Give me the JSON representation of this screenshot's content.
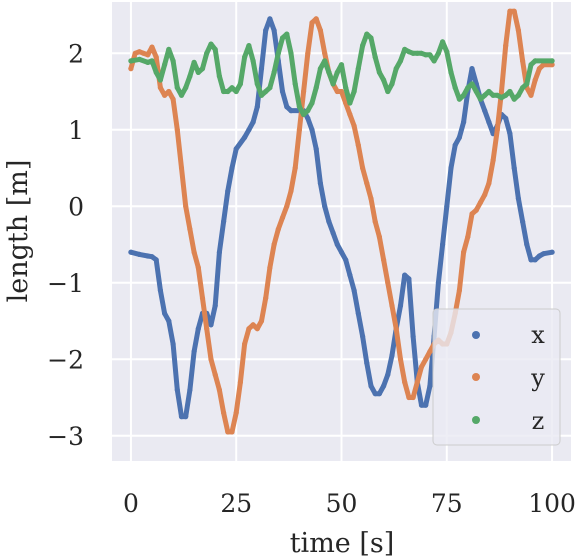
{
  "chart_data": {
    "type": "scatter",
    "title": "",
    "xlabel": "time [s]",
    "ylabel": "length [m]",
    "xlim": [
      -4.5,
      104.5
    ],
    "ylim": [
      -3.33,
      2.67
    ],
    "xticks": [
      0,
      25,
      50,
      75,
      100
    ],
    "xtick_labels": [
      "0",
      "25",
      "50",
      "75",
      "100"
    ],
    "yticks": [
      -3,
      -2,
      -1,
      0,
      1,
      2
    ],
    "ytick_labels": [
      "−3",
      "−2",
      "−1",
      "0",
      "1",
      "2"
    ],
    "grid": true,
    "legend_position": "lower-right",
    "series": [
      {
        "name": "x",
        "color": "#4c72b0",
        "points": [
          [
            0,
            -0.6
          ],
          [
            2,
            -0.63
          ],
          [
            4,
            -0.65
          ],
          [
            5,
            -0.66
          ],
          [
            6,
            -0.7
          ],
          [
            7,
            -1.1
          ],
          [
            8,
            -1.4
          ],
          [
            9,
            -1.5
          ],
          [
            10,
            -1.8
          ],
          [
            11,
            -2.4
          ],
          [
            12,
            -2.75
          ],
          [
            13,
            -2.75
          ],
          [
            14,
            -2.4
          ],
          [
            15,
            -1.9
          ],
          [
            16,
            -1.6
          ],
          [
            17,
            -1.4
          ],
          [
            18,
            -1.4
          ],
          [
            19,
            -1.55
          ],
          [
            20,
            -1.3
          ],
          [
            21,
            -0.6
          ],
          [
            22,
            -0.2
          ],
          [
            23,
            0.2
          ],
          [
            24,
            0.5
          ],
          [
            25,
            0.75
          ],
          [
            27,
            0.9
          ],
          [
            28,
            1.0
          ],
          [
            29,
            1.1
          ],
          [
            30,
            1.3
          ],
          [
            31,
            1.8
          ],
          [
            32,
            2.3
          ],
          [
            33,
            2.45
          ],
          [
            34,
            2.3
          ],
          [
            35,
            1.9
          ],
          [
            36,
            1.5
          ],
          [
            37,
            1.3
          ],
          [
            38,
            1.25
          ],
          [
            40,
            1.25
          ],
          [
            41,
            1.25
          ],
          [
            42,
            1.15
          ],
          [
            43,
            1.0
          ],
          [
            44,
            0.75
          ],
          [
            45,
            0.3
          ],
          [
            46,
            0.0
          ],
          [
            47,
            -0.2
          ],
          [
            48,
            -0.35
          ],
          [
            49,
            -0.5
          ],
          [
            50,
            -0.6
          ],
          [
            51,
            -0.7
          ],
          [
            52,
            -0.9
          ],
          [
            53,
            -1.1
          ],
          [
            54,
            -1.4
          ],
          [
            55,
            -1.7
          ],
          [
            56,
            -2.05
          ],
          [
            57,
            -2.35
          ],
          [
            58,
            -2.45
          ],
          [
            59,
            -2.45
          ],
          [
            60,
            -2.35
          ],
          [
            61,
            -2.2
          ],
          [
            62,
            -1.95
          ],
          [
            63,
            -1.6
          ],
          [
            64,
            -1.3
          ],
          [
            65,
            -0.9
          ],
          [
            66,
            -0.95
          ],
          [
            67,
            -1.7
          ],
          [
            68,
            -2.3
          ],
          [
            69,
            -2.6
          ],
          [
            70,
            -2.6
          ],
          [
            71,
            -2.35
          ],
          [
            72,
            -1.7
          ],
          [
            73,
            -1.0
          ],
          [
            74,
            -0.5
          ],
          [
            75,
            0.0
          ],
          [
            76,
            0.5
          ],
          [
            77,
            0.8
          ],
          [
            78,
            0.9
          ],
          [
            79,
            1.1
          ],
          [
            80,
            1.5
          ],
          [
            81,
            1.8
          ],
          [
            82,
            1.6
          ],
          [
            83,
            1.4
          ],
          [
            84,
            1.25
          ],
          [
            85,
            1.1
          ],
          [
            86,
            0.95
          ],
          [
            87,
            1.05
          ],
          [
            88,
            1.2
          ],
          [
            89,
            1.15
          ],
          [
            90,
            0.95
          ],
          [
            91,
            0.5
          ],
          [
            92,
            0.1
          ],
          [
            93,
            -0.2
          ],
          [
            94,
            -0.5
          ],
          [
            95,
            -0.7
          ],
          [
            96,
            -0.7
          ],
          [
            97,
            -0.65
          ],
          [
            98,
            -0.62
          ],
          [
            100,
            -0.6
          ]
        ]
      },
      {
        "name": "y",
        "color": "#dd8452",
        "points": [
          [
            0,
            1.8
          ],
          [
            1,
            2.0
          ],
          [
            2,
            2.02
          ],
          [
            3,
            2.0
          ],
          [
            4,
            1.98
          ],
          [
            5,
            2.08
          ],
          [
            6,
            1.95
          ],
          [
            7,
            1.55
          ],
          [
            8,
            1.45
          ],
          [
            9,
            1.5
          ],
          [
            10,
            1.4
          ],
          [
            11,
            1.0
          ],
          [
            12,
            0.5
          ],
          [
            13,
            0.0
          ],
          [
            14,
            -0.3
          ],
          [
            15,
            -0.6
          ],
          [
            16,
            -0.8
          ],
          [
            17,
            -1.2
          ],
          [
            18,
            -1.6
          ],
          [
            19,
            -2.0
          ],
          [
            20,
            -2.2
          ],
          [
            21,
            -2.4
          ],
          [
            22,
            -2.7
          ],
          [
            23,
            -2.95
          ],
          [
            24,
            -2.95
          ],
          [
            25,
            -2.7
          ],
          [
            26,
            -2.3
          ],
          [
            27,
            -1.8
          ],
          [
            28,
            -1.6
          ],
          [
            29,
            -1.55
          ],
          [
            30,
            -1.6
          ],
          [
            31,
            -1.5
          ],
          [
            32,
            -1.2
          ],
          [
            33,
            -0.8
          ],
          [
            34,
            -0.5
          ],
          [
            35,
            -0.3
          ],
          [
            36,
            -0.15
          ],
          [
            37,
            0.0
          ],
          [
            38,
            0.2
          ],
          [
            39,
            0.5
          ],
          [
            40,
            1.0
          ],
          [
            41,
            1.5
          ],
          [
            42,
            2.0
          ],
          [
            43,
            2.4
          ],
          [
            44,
            2.45
          ],
          [
            45,
            2.3
          ],
          [
            46,
            2.0
          ],
          [
            47,
            1.75
          ],
          [
            48,
            1.6
          ],
          [
            49,
            1.5
          ],
          [
            50,
            1.5
          ],
          [
            51,
            1.35
          ],
          [
            52,
            1.2
          ],
          [
            53,
            1.05
          ],
          [
            54,
            0.8
          ],
          [
            55,
            0.5
          ],
          [
            56,
            0.3
          ],
          [
            57,
            0.1
          ],
          [
            58,
            -0.2
          ],
          [
            59,
            -0.4
          ],
          [
            60,
            -0.7
          ],
          [
            61,
            -1.0
          ],
          [
            62,
            -1.3
          ],
          [
            63,
            -1.6
          ],
          [
            64,
            -2.0
          ],
          [
            65,
            -2.3
          ],
          [
            66,
            -2.5
          ],
          [
            67,
            -2.5
          ],
          [
            68,
            -2.3
          ],
          [
            69,
            -2.1
          ],
          [
            70,
            -2.0
          ],
          [
            71,
            -1.9
          ],
          [
            72,
            -1.8
          ],
          [
            73,
            -1.75
          ],
          [
            74,
            -1.8
          ],
          [
            75,
            -1.8
          ],
          [
            76,
            -1.65
          ],
          [
            77,
            -1.4
          ],
          [
            78,
            -1.1
          ],
          [
            79,
            -0.6
          ],
          [
            80,
            -0.4
          ],
          [
            81,
            -0.1
          ],
          [
            82,
            -0.05
          ],
          [
            83,
            0.05
          ],
          [
            84,
            0.15
          ],
          [
            85,
            0.3
          ],
          [
            86,
            0.6
          ],
          [
            87,
            1.0
          ],
          [
            88,
            1.5
          ],
          [
            89,
            2.1
          ],
          [
            90,
            2.55
          ],
          [
            91,
            2.55
          ],
          [
            92,
            2.3
          ],
          [
            93,
            1.9
          ],
          [
            94,
            1.55
          ],
          [
            95,
            1.45
          ],
          [
            96,
            1.65
          ],
          [
            97,
            1.8
          ],
          [
            98,
            1.85
          ],
          [
            100,
            1.85
          ]
        ]
      },
      {
        "name": "z",
        "color": "#55a868",
        "points": [
          [
            0,
            1.9
          ],
          [
            2,
            1.92
          ],
          [
            4,
            1.88
          ],
          [
            5,
            1.9
          ],
          [
            6,
            1.75
          ],
          [
            7,
            1.65
          ],
          [
            8,
            1.85
          ],
          [
            9,
            2.05
          ],
          [
            10,
            1.9
          ],
          [
            11,
            1.55
          ],
          [
            12,
            1.45
          ],
          [
            13,
            1.55
          ],
          [
            14,
            1.7
          ],
          [
            15,
            1.88
          ],
          [
            16,
            1.75
          ],
          [
            17,
            1.8
          ],
          [
            18,
            2.0
          ],
          [
            19,
            2.12
          ],
          [
            20,
            2.05
          ],
          [
            21,
            1.7
          ],
          [
            22,
            1.5
          ],
          [
            23,
            1.5
          ],
          [
            24,
            1.55
          ],
          [
            25,
            1.5
          ],
          [
            26,
            1.6
          ],
          [
            27,
            1.95
          ],
          [
            28,
            2.1
          ],
          [
            29,
            1.9
          ],
          [
            30,
            1.6
          ],
          [
            31,
            1.45
          ],
          [
            32,
            1.5
          ],
          [
            33,
            1.55
          ],
          [
            34,
            1.75
          ],
          [
            35,
            2.0
          ],
          [
            36,
            2.2
          ],
          [
            37,
            2.25
          ],
          [
            38,
            2.0
          ],
          [
            39,
            1.6
          ],
          [
            40,
            1.3
          ],
          [
            41,
            1.2
          ],
          [
            42,
            1.25
          ],
          [
            43,
            1.35
          ],
          [
            44,
            1.55
          ],
          [
            45,
            1.8
          ],
          [
            46,
            1.9
          ],
          [
            47,
            1.75
          ],
          [
            48,
            1.6
          ],
          [
            49,
            1.75
          ],
          [
            50,
            1.85
          ],
          [
            51,
            1.55
          ],
          [
            52,
            1.35
          ],
          [
            53,
            1.5
          ],
          [
            54,
            1.8
          ],
          [
            55,
            2.1
          ],
          [
            56,
            2.25
          ],
          [
            57,
            2.2
          ],
          [
            58,
            1.95
          ],
          [
            59,
            1.75
          ],
          [
            60,
            1.65
          ],
          [
            61,
            1.5
          ],
          [
            62,
            1.6
          ],
          [
            63,
            1.8
          ],
          [
            64,
            1.9
          ],
          [
            65,
            2.05
          ],
          [
            66,
            2.02
          ],
          [
            67,
            2.0
          ],
          [
            68,
            2.0
          ],
          [
            69,
            2.0
          ],
          [
            70,
            1.98
          ],
          [
            71,
            1.98
          ],
          [
            72,
            1.9
          ],
          [
            73,
            2.0
          ],
          [
            74,
            2.15
          ],
          [
            75,
            2.02
          ],
          [
            76,
            1.75
          ],
          [
            77,
            1.55
          ],
          [
            78,
            1.4
          ],
          [
            79,
            1.45
          ],
          [
            80,
            1.55
          ],
          [
            81,
            1.6
          ],
          [
            82,
            1.5
          ],
          [
            83,
            1.4
          ],
          [
            84,
            1.45
          ],
          [
            85,
            1.5
          ],
          [
            86,
            1.45
          ],
          [
            87,
            1.45
          ],
          [
            88,
            1.42
          ],
          [
            89,
            1.45
          ],
          [
            90,
            1.5
          ],
          [
            91,
            1.4
          ],
          [
            92,
            1.45
          ],
          [
            93,
            1.55
          ],
          [
            94,
            1.6
          ],
          [
            95,
            1.85
          ],
          [
            96,
            1.9
          ],
          [
            100,
            1.9
          ]
        ]
      }
    ]
  }
}
